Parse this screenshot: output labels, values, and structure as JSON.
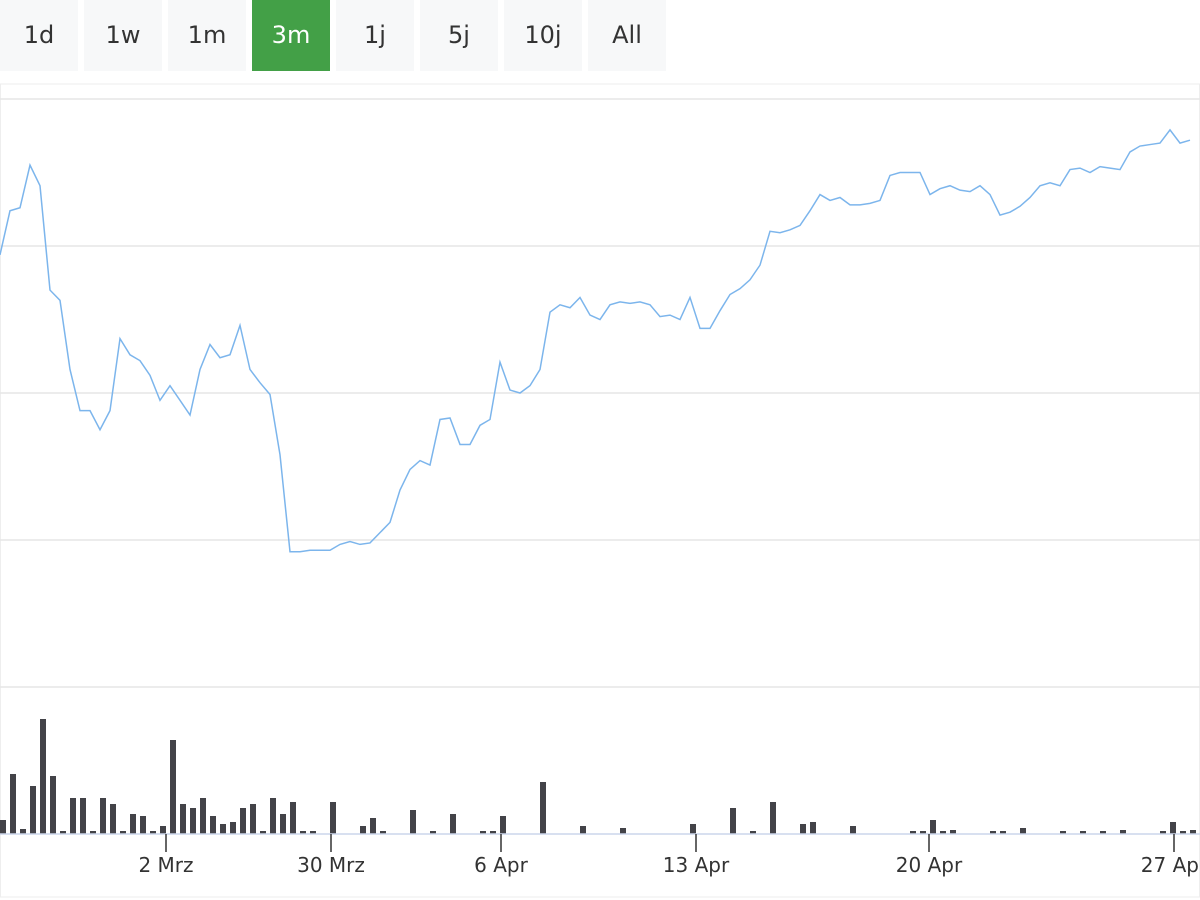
{
  "buttons": [
    "1d",
    "1w",
    "1m",
    "3m",
    "1j",
    "5j",
    "10j",
    "All"
  ],
  "selected": 3,
  "chart_data": [
    {
      "type": "line",
      "color": "#7cb5ec",
      "xlim": [
        0,
        120
      ],
      "ylim": [
        0,
        4
      ],
      "yticks": [
        0,
        1,
        2,
        3,
        4
      ],
      "grid": true,
      "values": [
        2.94,
        3.24,
        3.26,
        3.55,
        3.41,
        2.7,
        2.63,
        2.16,
        1.88,
        1.88,
        1.75,
        1.88,
        2.37,
        2.26,
        2.22,
        2.12,
        1.95,
        2.05,
        1.95,
        1.85,
        2.16,
        2.33,
        2.24,
        2.26,
        2.46,
        2.16,
        2.07,
        1.99,
        1.58,
        0.92,
        0.92,
        0.93,
        0.93,
        0.93,
        0.97,
        0.99,
        0.97,
        0.98,
        1.05,
        1.12,
        1.34,
        1.48,
        1.54,
        1.51,
        1.82,
        1.83,
        1.65,
        1.65,
        1.78,
        1.82,
        2.21,
        2.02,
        2.0,
        2.05,
        2.16,
        2.55,
        2.6,
        2.58,
        2.65,
        2.53,
        2.5,
        2.6,
        2.62,
        2.61,
        2.62,
        2.6,
        2.52,
        2.53,
        2.5,
        2.65,
        2.44,
        2.44,
        2.56,
        2.67,
        2.71,
        2.77,
        2.87,
        3.1,
        3.09,
        3.11,
        3.14,
        3.24,
        3.35,
        3.31,
        3.33,
        3.28,
        3.28,
        3.29,
        3.31,
        3.48,
        3.5,
        3.5,
        3.5,
        3.35,
        3.39,
        3.41,
        3.38,
        3.37,
        3.41,
        3.35,
        3.21,
        3.23,
        3.27,
        3.33,
        3.41,
        3.43,
        3.41,
        3.52,
        3.53,
        3.5,
        3.54,
        3.53,
        3.52,
        3.64,
        3.68,
        3.69,
        3.7,
        3.79,
        3.7,
        3.72
      ]
    },
    {
      "type": "bar",
      "color": "#434348",
      "xlim": [
        0,
        120
      ],
      "ylim": [
        0,
        147
      ],
      "xticks": [
        {
          "value": 16.6,
          "label": "2 Mrz"
        },
        {
          "value": 33.1,
          "label": "30 Mrz"
        },
        {
          "value": 50.1,
          "label": "6 Apr"
        },
        {
          "value": 69.6,
          "label": "13 Apr"
        },
        {
          "value": 92.9,
          "label": "20 Apr"
        },
        {
          "value": 117.4,
          "label": "27 Apr"
        }
      ],
      "values": [
        14,
        60,
        5,
        48,
        115,
        58,
        3,
        36,
        36,
        3,
        36,
        30,
        3,
        20,
        18,
        3,
        8,
        94,
        30,
        26,
        36,
        18,
        10,
        12,
        26,
        30,
        3,
        36,
        20,
        32,
        3,
        3,
        0,
        32,
        0,
        0,
        8,
        16,
        3,
        0,
        0,
        24,
        0,
        3,
        0,
        20,
        0,
        0,
        3,
        3,
        18,
        0,
        0,
        0,
        52,
        0,
        0,
        0,
        8,
        0,
        0,
        0,
        6,
        0,
        0,
        0,
        0,
        0,
        0,
        10,
        0,
        0,
        0,
        26,
        0,
        3,
        0,
        32,
        0,
        0,
        10,
        12,
        0,
        0,
        0,
        8,
        0,
        0,
        0,
        0,
        0,
        3,
        3,
        14,
        3,
        4,
        0,
        0,
        0,
        3,
        3,
        0,
        6,
        0,
        0,
        0,
        3,
        0,
        3,
        0,
        3,
        0,
        4,
        0,
        0,
        0,
        3,
        12,
        3,
        4
      ]
    }
  ]
}
